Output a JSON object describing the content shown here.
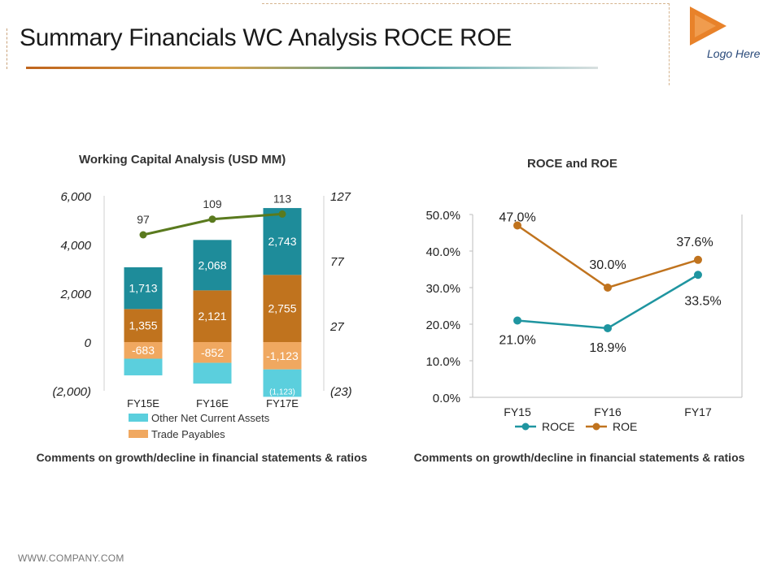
{
  "page": {
    "title": "Summary Financials WC Analysis ROCE ROE",
    "logo_text": "Logo Here",
    "footer": "WWW.COMPANY.COM"
  },
  "colors": {
    "other_nca": "#5bcfdd",
    "trade_payables": "#f0a860",
    "inventory": "#c0731e",
    "receivables": "#1e8c9a",
    "days_line": "#5a7a1e",
    "roce": "#1f95a0",
    "roe": "#c0731e",
    "logo": "#e8822a"
  },
  "wc_chart": {
    "title": "Working Capital Analysis (USD MM)",
    "comment": "Comments on growth/decline in financial statements & ratios"
  },
  "roce_chart": {
    "title": "ROCE and ROE",
    "comment": "Comments on growth/decline in financial statements & ratios"
  },
  "chart_data": [
    {
      "type": "bar",
      "stacked": true,
      "title": "Working Capital Analysis (USD MM)",
      "categories": [
        "FY15E",
        "FY16E",
        "FY17E"
      ],
      "ylim": [
        -2000,
        6000
      ],
      "y_ticks": [
        "(2,000)",
        "0",
        "2,000",
        "4,000",
        "6,000"
      ],
      "y2lim": [
        -23,
        127
      ],
      "y2_ticks": [
        "(23)",
        "27",
        "77",
        "127"
      ],
      "series": [
        {
          "name": "Other Net Current Assets",
          "values": [
            -683,
            -852,
            -1123
          ],
          "labels": [
            "",
            "",
            "(1,123)"
          ]
        },
        {
          "name": "Trade Payables",
          "values": [
            -683,
            -852,
            -1123
          ],
          "labels": [
            "-683",
            "-852",
            "-1,123"
          ]
        },
        {
          "values": [
            1355,
            2121,
            2755
          ],
          "labels": [
            "1,355",
            "2,121",
            "2,755"
          ]
        },
        {
          "values": [
            1713,
            2068,
            2743
          ],
          "labels": [
            "1,713",
            "2,068",
            "2,743"
          ]
        }
      ],
      "line": {
        "axis": "secondary",
        "values": [
          97,
          109,
          113
        ],
        "labels": [
          "97",
          "109",
          "113"
        ]
      },
      "legend": "bottom-left"
    },
    {
      "type": "line",
      "title": "ROCE and ROE",
      "categories": [
        "FY15",
        "FY16",
        "FY17"
      ],
      "ylim": [
        0,
        50
      ],
      "y_ticks": [
        "0.0%",
        "10.0%",
        "20.0%",
        "30.0%",
        "40.0%",
        "50.0%"
      ],
      "series": [
        {
          "name": "ROCE",
          "values": [
            21.0,
            18.9,
            33.5
          ],
          "labels": [
            "21.0%",
            "18.9%",
            "33.5%"
          ]
        },
        {
          "name": "ROE",
          "values": [
            47.0,
            30.0,
            37.6
          ],
          "labels": [
            "47.0%",
            "30.0%",
            "37.6%"
          ]
        }
      ],
      "legend": "bottom"
    }
  ]
}
